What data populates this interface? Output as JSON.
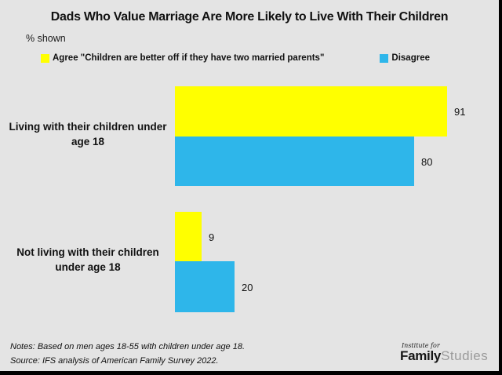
{
  "title": "Dads Who Value Marriage Are More Likely to Live With Their Children",
  "subtitle": "% shown",
  "legend": {
    "agree_label": "Agree \"Children are better off if they have two married parents\"",
    "disagree_label": "Disagree"
  },
  "colors": {
    "agree": "#ffff00",
    "disagree": "#2eb6ea",
    "background": "#e4e4e4",
    "border": "#000000"
  },
  "chart_data": {
    "type": "bar",
    "orientation": "horizontal",
    "title": "Dads Who Value Marriage Are More Likely to Live With Their Children",
    "subtitle": "% shown",
    "categories": [
      "Living with their children under age 18",
      "Not living with their children under age 18"
    ],
    "series": [
      {
        "name": "Agree \"Children are better off if they have two married parents\"",
        "values": [
          91,
          9
        ],
        "color": "#ffff00"
      },
      {
        "name": "Disagree",
        "values": [
          80,
          20
        ],
        "color": "#2eb6ea"
      }
    ],
    "xlim": [
      0,
      100
    ],
    "grid": false,
    "legend_position": "top",
    "value_labels": true
  },
  "footer": {
    "notes": "Notes: Based on men ages 18-55 with children under age 18.",
    "source": "Source: IFS analysis of American Family Survey 2022."
  },
  "logo": {
    "top": "Institute for",
    "bold": "Family",
    "light": "Studies"
  }
}
